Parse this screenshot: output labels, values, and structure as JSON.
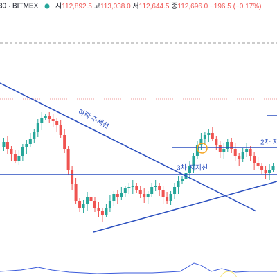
{
  "header": {
    "symbol": "30 · BITMEX",
    "open_label": "시",
    "open": "112,892.5",
    "high_label": "고",
    "high": "113,038.0",
    "low_label": "저",
    "low": "112,644.5",
    "close_label": "종",
    "close": "112,696.0",
    "change": "−196.5 (−0.17%)"
  },
  "annotations": {
    "downtrend": "하락 추세선",
    "support3": "3차 지지선",
    "support2": "2차 지"
  }
}
